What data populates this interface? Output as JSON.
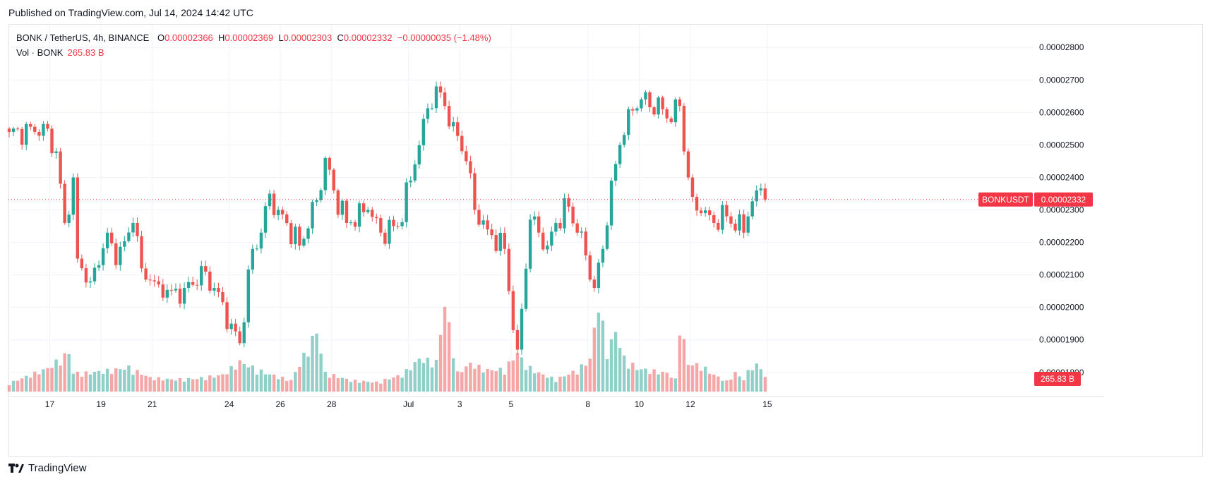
{
  "header": {
    "published": "Published on TradingView.com, Jul 14, 2024 14:42 UTC"
  },
  "legend": {
    "symbol": "BONK / TetherUS, 4h, BINANCE",
    "open_key": "O",
    "open": "0.00002366",
    "high_key": "H",
    "high": "0.00002369",
    "low_key": "L",
    "low": "0.00002303",
    "close_key": "C",
    "close": "0.00002332",
    "change": "−0.00000035 (−1.48%)",
    "vol_label": "Vol · BONK",
    "vol_value": "265.83 B"
  },
  "price_tag": {
    "symbol": "BONKUSDT",
    "price": "0.00002332"
  },
  "volume_tag": {
    "value": "265.83 B"
  },
  "footer": {
    "brand": "TradingView"
  },
  "colors": {
    "up": "#26a69a",
    "down": "#ef5350",
    "up_vol": "#8fd1c9",
    "down_vol": "#f5a6a6",
    "tag": "#f23645"
  },
  "chart_data": {
    "type": "candlestick",
    "symbol": "BONK / TetherUS",
    "interval": "4h",
    "exchange": "BINANCE",
    "y_ticks": [
      "0.00002800",
      "0.00002700",
      "0.00002600",
      "0.00002500",
      "0.00002400",
      "0.00002300",
      "0.00002200",
      "0.00002100",
      "0.00002000",
      "0.00001900",
      "0.00001800"
    ],
    "ylim": [
      1.73e-05,
      2.87e-05
    ],
    "x_ticks": [
      {
        "label": "17",
        "index": 9.5
      },
      {
        "label": "19",
        "index": 21.5
      },
      {
        "label": "21",
        "index": 33.5
      },
      {
        "label": "24",
        "index": 51.5
      },
      {
        "label": "26",
        "index": 63.5
      },
      {
        "label": "28",
        "index": 75.5
      },
      {
        "label": "Jul",
        "index": 93.5
      },
      {
        "label": "3",
        "index": 105.5
      },
      {
        "label": "5",
        "index": 117.5
      },
      {
        "label": "8",
        "index": 135.5
      },
      {
        "label": "10",
        "index": 147.5
      },
      {
        "label": "12",
        "index": 159.5
      },
      {
        "label": "15",
        "index": 177.5
      }
    ],
    "waypoints": [
      [
        0,
        2.54e-05
      ],
      [
        6,
        2.54e-05
      ],
      [
        9,
        2.55e-05
      ],
      [
        11,
        2.48e-05
      ],
      [
        13,
        2.26e-05
      ],
      [
        15,
        2.4e-05
      ],
      [
        16,
        2.15e-05
      ],
      [
        19,
        2.08e-05
      ],
      [
        21,
        2.13e-05
      ],
      [
        23,
        2.23e-05
      ],
      [
        25,
        2.13e-05
      ],
      [
        29,
        2.26e-05
      ],
      [
        31,
        2.12e-05
      ],
      [
        34,
        2.08e-05
      ],
      [
        36,
        2.03e-05
      ],
      [
        41,
        2.06e-05
      ],
      [
        46,
        2.11e-05
      ],
      [
        48,
        2.06e-05
      ],
      [
        52,
        1.95e-05
      ],
      [
        54,
        1.89e-05
      ],
      [
        57,
        2.18e-05
      ],
      [
        59,
        2.23e-05
      ],
      [
        61,
        2.35e-05
      ],
      [
        63,
        2.3e-05
      ],
      [
        68,
        2.19e-05
      ],
      [
        72,
        2.33e-05
      ],
      [
        74,
        2.46e-05
      ],
      [
        76,
        2.36e-05
      ],
      [
        79,
        2.26e-05
      ],
      [
        84,
        2.3e-05
      ],
      [
        87,
        2.23e-05
      ],
      [
        91,
        2.25e-05
      ],
      [
        95,
        2.44e-05
      ],
      [
        97,
        2.58e-05
      ],
      [
        100,
        2.68e-05
      ],
      [
        102,
        2.62e-05
      ],
      [
        104,
        2.57e-05
      ],
      [
        107,
        2.45e-05
      ],
      [
        109,
        2.3e-05
      ],
      [
        112,
        2.24e-05
      ],
      [
        116,
        2.18e-05
      ],
      [
        117,
        2.05e-05
      ],
      [
        119,
        1.87e-05
      ],
      [
        122,
        2.27e-05
      ],
      [
        124,
        2.23e-05
      ],
      [
        126,
        2.19e-05
      ],
      [
        128,
        2.26e-05
      ],
      [
        131,
        2.31e-05
      ],
      [
        133,
        2.23e-05
      ],
      [
        135,
        2.16e-05
      ],
      [
        137,
        2.06e-05
      ],
      [
        139,
        2.18e-05
      ],
      [
        141,
        2.39e-05
      ],
      [
        143,
        2.5e-05
      ],
      [
        145,
        2.61e-05
      ],
      [
        148,
        2.64e-05
      ],
      [
        153,
        2.61e-05
      ],
      [
        155,
        2.57e-05
      ],
      [
        157,
        2.62e-05
      ],
      [
        158,
        2.48e-05
      ],
      [
        160,
        2.34e-05
      ],
      [
        162,
        2.29e-05
      ],
      [
        165,
        2.26e-05
      ],
      [
        168,
        2.28e-05
      ],
      [
        172,
        2.23e-05
      ],
      [
        173,
        2.28e-05
      ],
      [
        175,
        2.36e-05
      ],
      [
        176,
        2.366e-05
      ],
      [
        177,
        2.332e-05
      ]
    ],
    "volume_waypoints": [
      [
        0,
        0.9
      ],
      [
        9,
        2.5
      ],
      [
        14,
        4.2
      ],
      [
        15,
        2.0
      ],
      [
        18,
        2.0
      ],
      [
        24,
        2.3
      ],
      [
        28,
        2.6
      ],
      [
        33,
        1.5
      ],
      [
        38,
        1.3
      ],
      [
        44,
        1.4
      ],
      [
        50,
        1.8
      ],
      [
        54,
        3.2
      ],
      [
        60,
        2.0
      ],
      [
        66,
        1.2
      ],
      [
        72,
        6.5
      ],
      [
        74,
        2.0
      ],
      [
        80,
        1.2
      ],
      [
        86,
        1.0
      ],
      [
        92,
        1.8
      ],
      [
        96,
        3.5
      ],
      [
        100,
        3.2
      ],
      [
        102,
        9.5
      ],
      [
        105,
        2.0
      ],
      [
        108,
        3.0
      ],
      [
        112,
        2.3
      ],
      [
        116,
        2.4
      ],
      [
        119,
        4.2
      ],
      [
        121,
        2.8
      ],
      [
        124,
        2.0
      ],
      [
        128,
        1.3
      ],
      [
        133,
        2.3
      ],
      [
        136,
        3.5
      ],
      [
        138,
        9.8
      ],
      [
        140,
        4.2
      ],
      [
        142,
        6.5
      ],
      [
        144,
        3.6
      ],
      [
        147,
        2.5
      ],
      [
        151,
        2.2
      ],
      [
        154,
        2.0
      ],
      [
        156,
        1.3
      ],
      [
        157,
        7.6
      ],
      [
        159,
        3.0
      ],
      [
        162,
        2.8
      ],
      [
        165,
        1.8
      ],
      [
        168,
        1.1
      ],
      [
        170,
        2.0
      ],
      [
        172,
        1.3
      ],
      [
        174,
        3.0
      ],
      [
        176,
        2.6
      ],
      [
        177,
        1.6
      ]
    ],
    "last_price": 2.332e-05,
    "last_volume": "265.83 B"
  }
}
